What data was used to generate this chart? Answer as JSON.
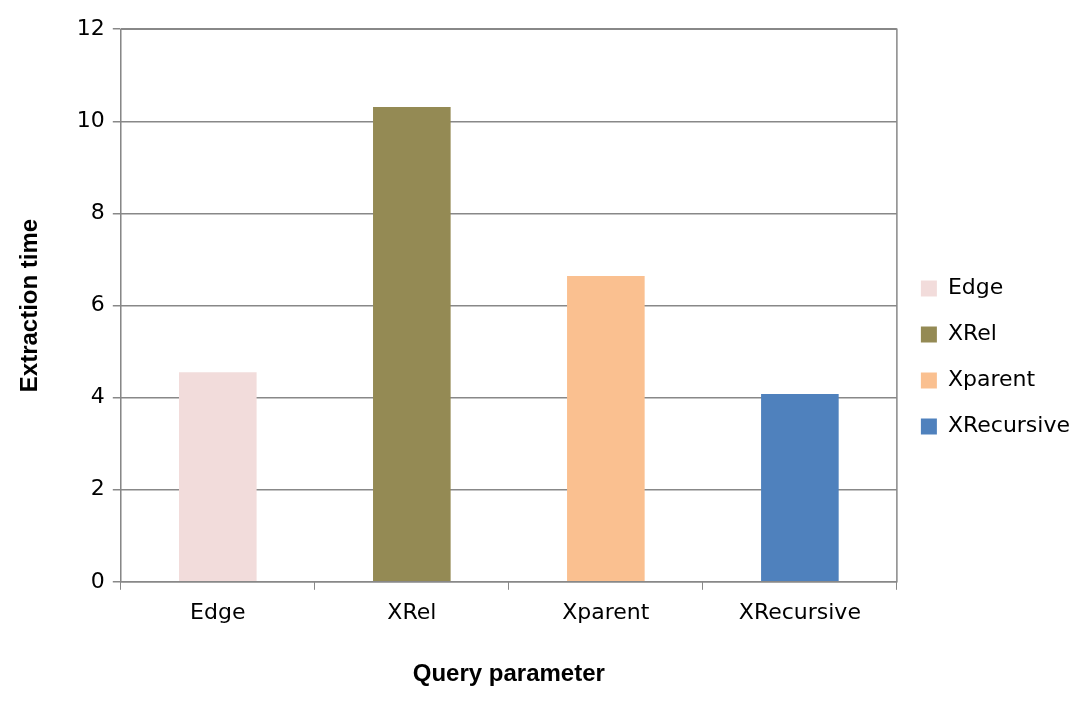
{
  "chart_data": {
    "type": "bar",
    "xlabel": "Query parameter",
    "ylabel": "Extraction time",
    "categories": [
      "Edge",
      "XRel",
      "Xparent",
      "XRecursive"
    ],
    "series": [
      {
        "name": "Edge",
        "color": "#f2dcdb",
        "values": [
          4.55,
          null,
          null,
          null
        ]
      },
      {
        "name": "XRel",
        "color": "#948a54",
        "values": [
          null,
          10.31,
          null,
          null
        ]
      },
      {
        "name": "Xparent",
        "color": "#fac090",
        "values": [
          null,
          null,
          6.64,
          null
        ]
      },
      {
        "name": "XRecursive",
        "color": "#4f81bd",
        "values": [
          null,
          null,
          null,
          4.08
        ]
      }
    ],
    "ylim": [
      0,
      12
    ],
    "yticks": [
      0,
      2,
      4,
      6,
      8,
      10,
      12
    ],
    "grid": "y",
    "legend": "right"
  }
}
